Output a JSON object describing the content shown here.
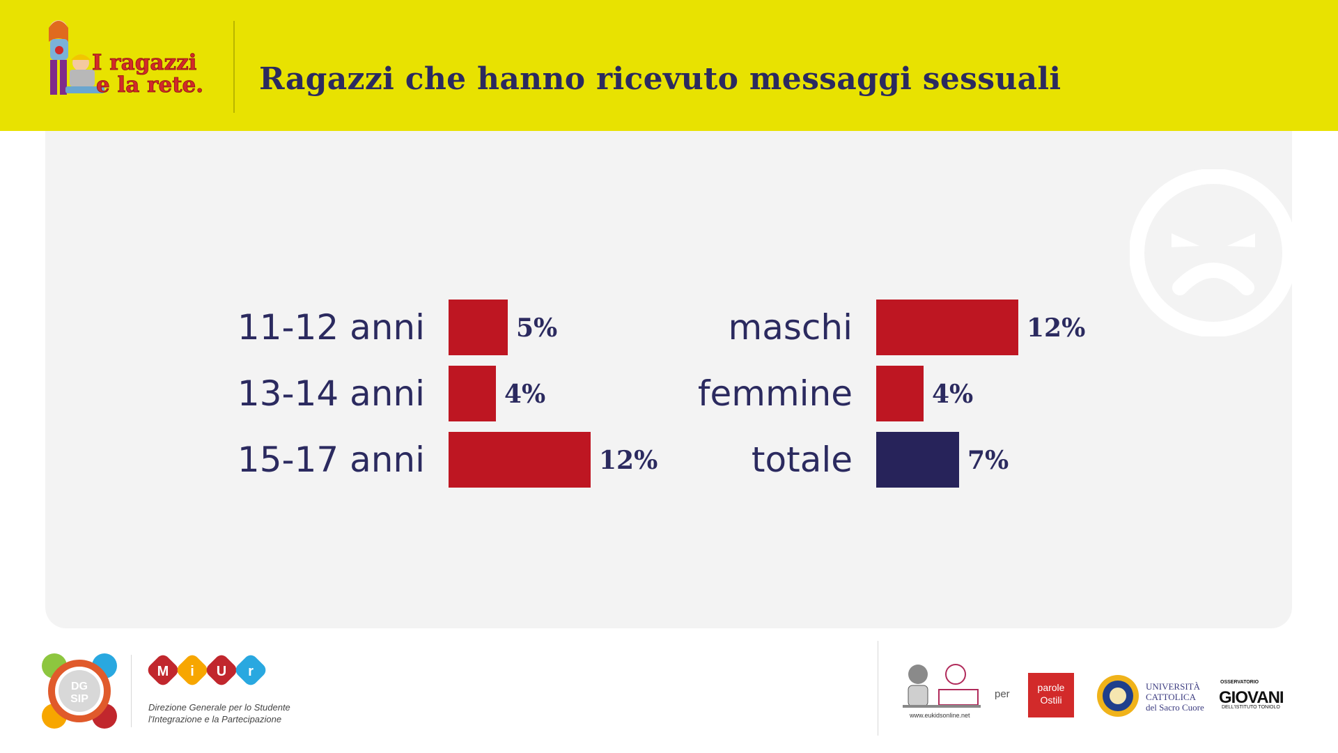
{
  "header": {
    "title": "Ragazzi che hanno ricevuto messaggi sessuali",
    "logo_text": [
      "I ragazzi",
      "e la rete."
    ]
  },
  "colors": {
    "header_bg": "#e8e201",
    "title_color": "#2b2a5f",
    "bar_red": "#be1622",
    "bar_navy": "#27235a",
    "panel_bg": "#f3f3f3"
  },
  "chart_data": [
    {
      "type": "bar",
      "orientation": "horizontal",
      "categories": [
        "11-12 anni",
        "13-14 anni",
        "15-17 anni"
      ],
      "values": [
        5,
        4,
        12
      ],
      "value_labels": [
        "5%",
        "4%",
        "12%"
      ],
      "colors": [
        "#be1622",
        "#be1622",
        "#be1622"
      ],
      "xlim": [
        0,
        12
      ]
    },
    {
      "type": "bar",
      "orientation": "horizontal",
      "categories": [
        "maschi",
        "femmine",
        "totale"
      ],
      "values": [
        12,
        4,
        7
      ],
      "value_labels": [
        "12%",
        "4%",
        "7%"
      ],
      "colors": [
        "#be1622",
        "#be1622",
        "#27235a"
      ],
      "xlim": [
        0,
        12
      ]
    }
  ],
  "footer": {
    "dgsip_text": [
      "DG",
      "SIP"
    ],
    "miur_letters": [
      "M",
      "i",
      "U",
      "r"
    ],
    "miur_caption": [
      "Direzione Generale per lo Studente",
      "l'Integrazione e la Partecipazione"
    ],
    "eukids_url": "www.eukidsonline.net",
    "per_label": "per",
    "parole_text": [
      "parole",
      "Ostili"
    ],
    "cattolica_text": [
      "UNIVERSITÀ",
      "CATTOLICA",
      "del Sacro Cuore"
    ],
    "giovani_top": "OSSERVATORIO",
    "giovani_main": "GIOVANI",
    "giovani_sub": "DELL'ISTITUTO TONIOLO"
  }
}
